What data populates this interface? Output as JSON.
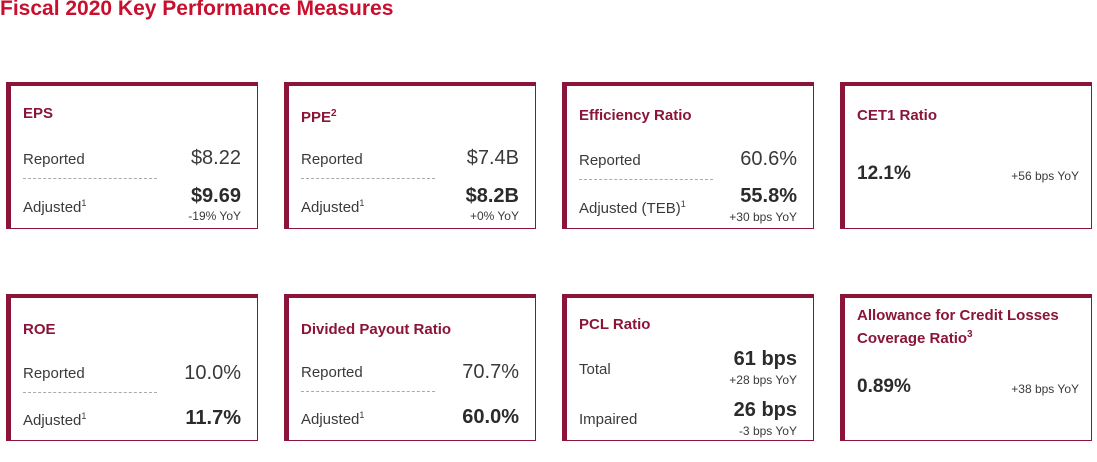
{
  "title": "Fiscal 2020 Key Performance Measures",
  "cards": {
    "eps": {
      "title": "EPS",
      "reported_label": "Reported",
      "reported_value": "$8.22",
      "adjusted_label": "Adjusted",
      "adjusted_note": "1",
      "adjusted_value": "$9.69",
      "adjusted_change": "-19% YoY"
    },
    "ppe": {
      "title": "PPE",
      "title_note": "2",
      "reported_label": "Reported",
      "reported_value": "$7.4B",
      "adjusted_label": "Adjusted",
      "adjusted_note": "1",
      "adjusted_value": "$8.2B",
      "adjusted_change": "+0% YoY"
    },
    "efficiency": {
      "title": "Efficiency Ratio",
      "reported_label": "Reported",
      "reported_value": "60.6%",
      "adjusted_label": "Adjusted (TEB)",
      "adjusted_note": "1",
      "adjusted_value": "55.8%",
      "adjusted_change": "+30 bps YoY"
    },
    "cet1": {
      "title": "CET1 Ratio",
      "value": "12.1%",
      "change": "+56 bps YoY"
    },
    "roe": {
      "title": "ROE",
      "reported_label": "Reported",
      "reported_value": "10.0%",
      "adjusted_label": "Adjusted",
      "adjusted_note": "1",
      "adjusted_value": "11.7%"
    },
    "payout": {
      "title": "Divided Payout Ratio",
      "reported_label": "Reported",
      "reported_value": "70.7%",
      "adjusted_label": "Adjusted",
      "adjusted_note": "1",
      "adjusted_value": "60.0%"
    },
    "pcl": {
      "title": "PCL Ratio",
      "total_label": "Total",
      "total_value": "61 bps",
      "total_change": "+28 bps YoY",
      "impaired_label": "Impaired",
      "impaired_value": "26 bps",
      "impaired_change": "-3 bps YoY"
    },
    "allowance": {
      "title_line1": "Allowance for Credit Losses",
      "title_line2": "Coverage Ratio",
      "title_note": "3",
      "value": "0.89%",
      "change": "+38 bps YoY"
    }
  }
}
